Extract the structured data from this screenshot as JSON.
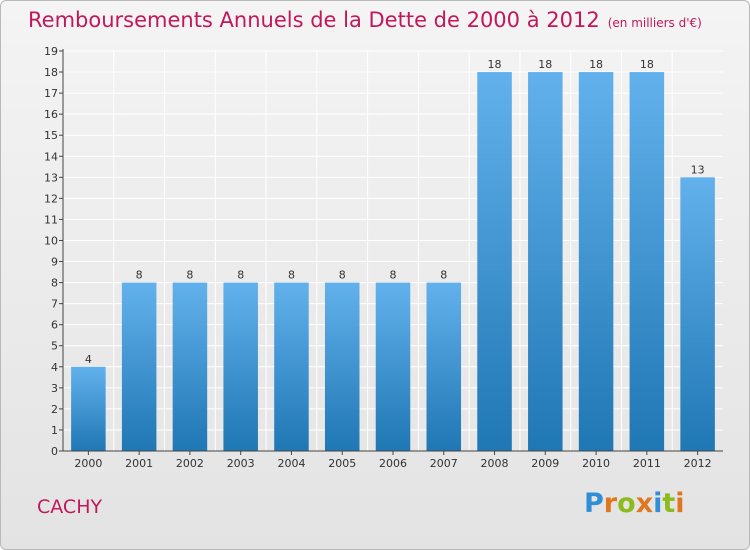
{
  "title": "Remboursements Annuels de la Dette de 2000 à 2012",
  "subtitle": "(en milliers d'€)",
  "commune": "CACHY",
  "logo": {
    "text": "Proxiti",
    "letter_colors": [
      "#2e8fd6",
      "#e0771f",
      "#8dbb1e",
      "#e0771f",
      "#2e8fd6",
      "#8dbb1e",
      "#e0771f"
    ]
  },
  "colors": {
    "title": "#c2185b",
    "bar_top": "#62b1ec",
    "bar_bottom": "#1f77b4",
    "grid": "#ffffff",
    "background": "#ececec"
  },
  "chart_data": {
    "type": "bar",
    "categories": [
      "2000",
      "2001",
      "2002",
      "2003",
      "2004",
      "2005",
      "2006",
      "2007",
      "2008",
      "2009",
      "2010",
      "2011",
      "2012"
    ],
    "values": [
      4,
      8,
      8,
      8,
      8,
      8,
      8,
      8,
      18,
      18,
      18,
      18,
      13
    ],
    "ylim": [
      0,
      19
    ],
    "yticks": [
      0,
      1,
      2,
      3,
      4,
      5,
      6,
      7,
      8,
      9,
      10,
      11,
      12,
      13,
      14,
      15,
      16,
      17,
      18,
      19
    ],
    "grid": true,
    "data_labels": true
  }
}
